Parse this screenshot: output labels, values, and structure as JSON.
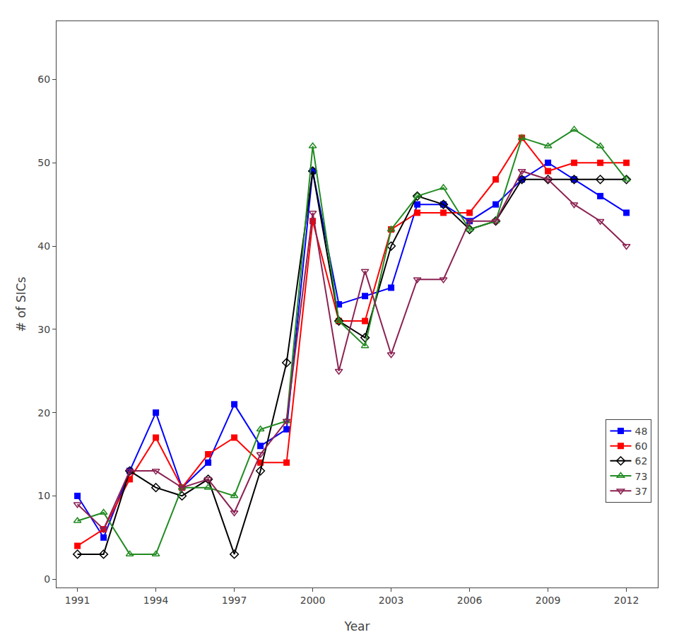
{
  "chart_data": {
    "type": "line",
    "x_label": "Year",
    "y_label": "# of SICs",
    "x": [
      1991,
      1992,
      1993,
      1994,
      1995,
      1996,
      1997,
      1998,
      1999,
      2000,
      2001,
      2002,
      2003,
      2004,
      2005,
      2006,
      2007,
      2008,
      2009,
      2010,
      2011,
      2012
    ],
    "series": [
      {
        "name": "48",
        "color": "#0000FF",
        "marker": "square",
        "values": [
          10,
          5,
          13,
          20,
          11,
          14,
          21,
          16,
          18,
          49,
          33,
          34,
          35,
          45,
          45,
          43,
          45,
          48,
          50,
          48,
          46,
          44
        ]
      },
      {
        "name": "60",
        "color": "#FF0000",
        "marker": "square",
        "values": [
          4,
          6,
          12,
          17,
          11,
          15,
          17,
          14,
          14,
          43,
          31,
          31,
          42,
          44,
          44,
          44,
          48,
          53,
          49,
          50,
          50,
          50
        ]
      },
      {
        "name": "62",
        "color": "#000000",
        "marker": "diamond-open",
        "values": [
          3,
          3,
          13,
          11,
          10,
          12,
          3,
          13,
          26,
          49,
          31,
          29,
          40,
          46,
          45,
          42,
          43,
          48,
          48,
          48,
          48,
          48
        ]
      },
      {
        "name": "73",
        "color": "#228B22",
        "marker": "triangle-up-open",
        "values": [
          7,
          8,
          3,
          3,
          11,
          11,
          10,
          18,
          19,
          52,
          31,
          28,
          42,
          46,
          47,
          42,
          43,
          53,
          52,
          54,
          52,
          48
        ]
      },
      {
        "name": "37",
        "color": "#8B2252",
        "marker": "triangle-down-open",
        "values": [
          9,
          6,
          13,
          13,
          11,
          12,
          8,
          15,
          19,
          44,
          25,
          37,
          27,
          36,
          36,
          43,
          43,
          49,
          48,
          45,
          43,
          40
        ]
      }
    ],
    "xlim": [
      1990.2,
      2013.2
    ],
    "xticks": [
      1991,
      1994,
      1997,
      2000,
      2003,
      2006,
      2009,
      2012
    ],
    "ylim": [
      -1,
      67
    ],
    "yticks": [
      0,
      10,
      20,
      30,
      40,
      50,
      60
    ],
    "grid": false,
    "legend": "lower right"
  }
}
